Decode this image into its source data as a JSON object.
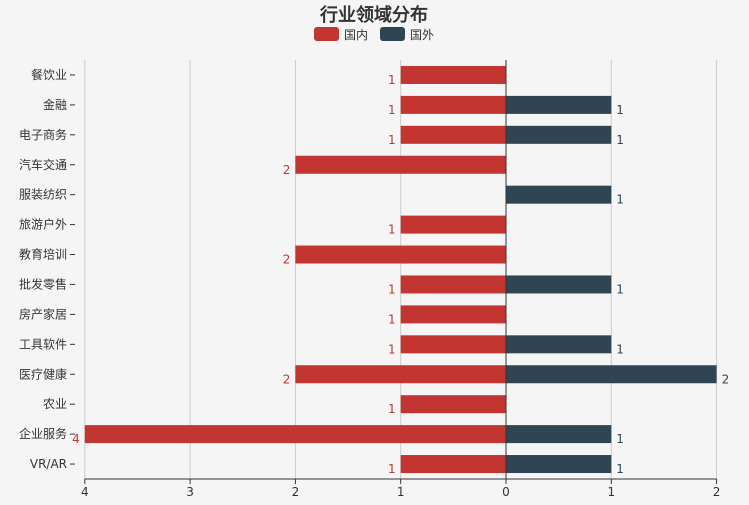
{
  "chart_data": {
    "type": "bar",
    "orientation": "horizontal-diverging",
    "title": "行业领域分布",
    "legend_position": "top-center",
    "grid": true,
    "categories": [
      "餐饮业",
      "金融",
      "电子商务",
      "汽车交通",
      "服装纺织",
      "旅游户外",
      "教育培训",
      "批发零售",
      "房产家居",
      "工具软件",
      "医疗健康",
      "农业",
      "企业服务",
      "VR/AR"
    ],
    "series": [
      {
        "name": "国内",
        "color": "#c23531",
        "values": [
          1,
          1,
          1,
          2,
          0,
          1,
          2,
          1,
          1,
          1,
          2,
          1,
          4,
          1
        ]
      },
      {
        "name": "国外",
        "color": "#2f4554",
        "values": [
          0,
          1,
          1,
          0,
          1,
          0,
          0,
          1,
          0,
          1,
          2,
          0,
          1,
          1
        ]
      }
    ],
    "x_ticks": [
      "4",
      "3",
      "2",
      "1",
      "0",
      "1",
      "2"
    ],
    "xlim_left": 4,
    "xlim_right": 2
  }
}
